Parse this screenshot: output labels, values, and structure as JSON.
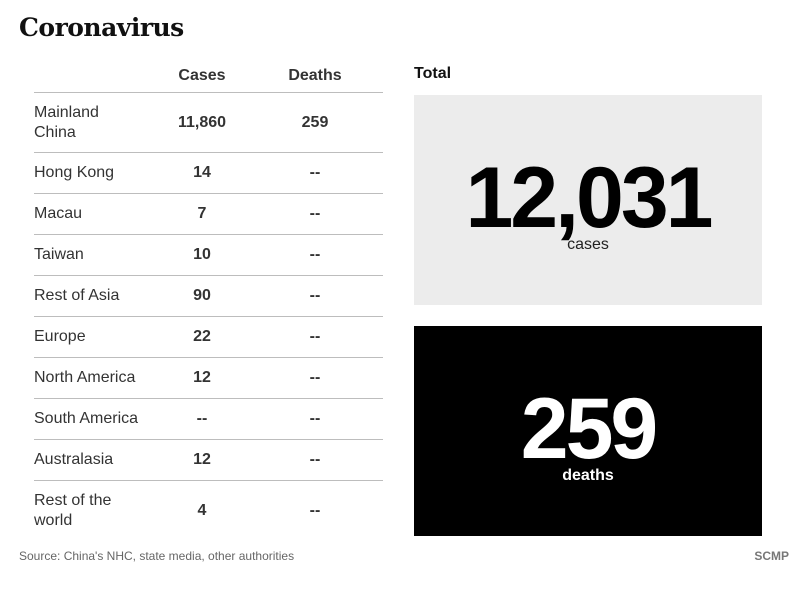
{
  "title": "Coronavirus",
  "table": {
    "headers": {
      "region": "",
      "cases": "Cases",
      "deaths": "Deaths"
    }
  },
  "totals": {
    "label": "Total",
    "cases_value": "12,031",
    "cases_unit": "cases",
    "deaths_value": "259",
    "deaths_unit": "deaths"
  },
  "colors": {
    "cases_box": "#ececec",
    "deaths_box": "#000000"
  },
  "source": "Source: China's NHC, state media, other authorities",
  "brand": "SCMP",
  "chart_data": {
    "type": "table",
    "title": "Coronavirus",
    "columns": [
      "",
      "Cases",
      "Deaths"
    ],
    "rows": [
      {
        "region": "Mainland China",
        "cases": "11,860",
        "deaths": "259"
      },
      {
        "region": "Hong Kong",
        "cases": "14",
        "deaths": "--"
      },
      {
        "region": "Macau",
        "cases": "7",
        "deaths": "--"
      },
      {
        "region": "Taiwan",
        "cases": "10",
        "deaths": "--"
      },
      {
        "region": "Rest of Asia",
        "cases": "90",
        "deaths": "--"
      },
      {
        "region": "Europe",
        "cases": "22",
        "deaths": "--"
      },
      {
        "region": "North America",
        "cases": "12",
        "deaths": "--"
      },
      {
        "region": "South America",
        "cases": "--",
        "deaths": "--"
      },
      {
        "region": "Australasia",
        "cases": "12",
        "deaths": "--"
      },
      {
        "region": "Rest of the world",
        "cases": "4",
        "deaths": "--"
      }
    ],
    "totals": {
      "cases": 12031,
      "deaths": 259
    }
  }
}
